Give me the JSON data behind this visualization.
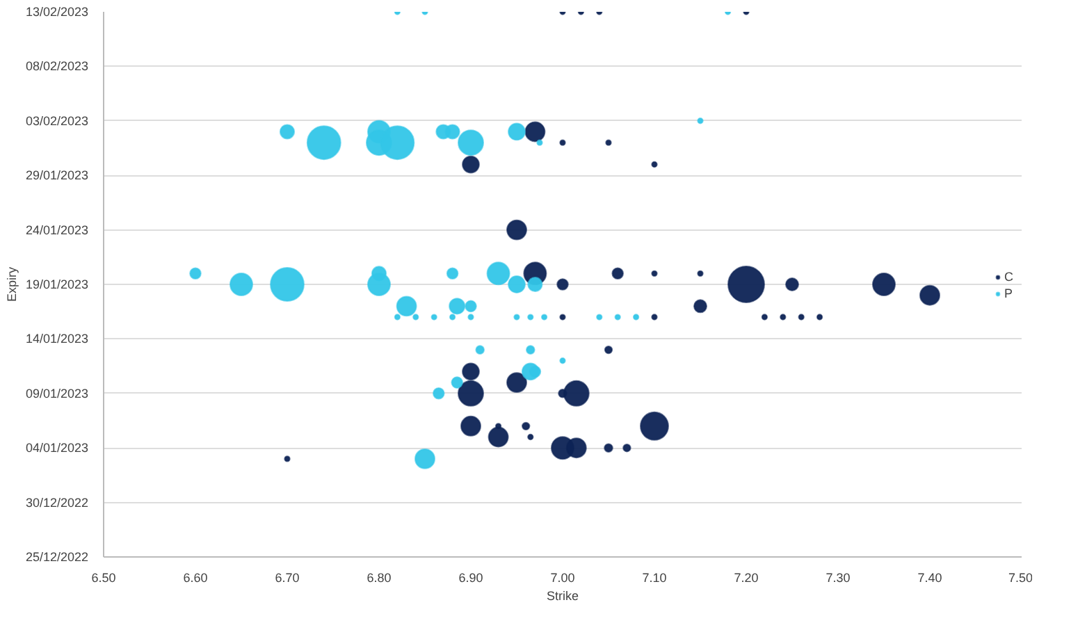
{
  "chart_data": {
    "type": "bubble",
    "orientation": "horizontal",
    "xlabel": "Strike",
    "ylabel": "Expiry",
    "xlim": [
      6.5,
      7.5
    ],
    "xticks": [
      {
        "value": 6.5,
        "label": "6.50"
      },
      {
        "value": 6.6,
        "label": "6.60"
      },
      {
        "value": 6.7,
        "label": "6.70"
      },
      {
        "value": 6.8,
        "label": "6.80"
      },
      {
        "value": 6.9,
        "label": "6.90"
      },
      {
        "value": 7.0,
        "label": "7.00"
      },
      {
        "value": 7.1,
        "label": "7.10"
      },
      {
        "value": 7.2,
        "label": "7.20"
      },
      {
        "value": 7.3,
        "label": "7.30"
      },
      {
        "value": 7.4,
        "label": "7.40"
      },
      {
        "value": 7.5,
        "label": "7.50"
      }
    ],
    "ylim": [
      "2022-12-25",
      "2023-02-13"
    ],
    "yticks": [
      {
        "value": "2022-12-25",
        "label": "25/12/2022"
      },
      {
        "value": "2022-12-30",
        "label": "30/12/2022"
      },
      {
        "value": "2023-01-04",
        "label": "04/01/2023"
      },
      {
        "value": "2023-01-09",
        "label": "09/01/2023"
      },
      {
        "value": "2023-01-14",
        "label": "14/01/2023"
      },
      {
        "value": "2023-01-19",
        "label": "19/01/2023"
      },
      {
        "value": "2023-01-24",
        "label": "24/01/2023"
      },
      {
        "value": "2023-01-29",
        "label": "29/01/2023"
      },
      {
        "value": "2023-02-03",
        "label": "03/02/2023"
      },
      {
        "value": "2023-02-08",
        "label": "08/02/2023"
      },
      {
        "value": "2023-02-13",
        "label": "13/02/2023"
      }
    ],
    "grid": "y",
    "legend": "right",
    "series": [
      {
        "name": "C",
        "color": "#0d2355",
        "values": [
          7.0,
          7.02,
          7.04,
          7.2,
          6.97,
          7.0,
          7.05,
          6.9,
          7.1,
          6.95,
          6.97,
          7.06,
          7.1,
          7.15,
          7.0,
          7.2,
          7.25,
          7.35,
          7.4,
          7.15,
          7.0,
          7.1,
          7.22,
          7.24,
          7.26,
          7.28,
          7.05,
          6.9,
          6.95,
          6.9,
          7.0,
          7.015,
          6.9,
          6.93,
          6.96,
          7.1,
          6.93,
          6.965,
          7.0,
          7.015,
          7.05,
          7.07,
          6.7
        ],
        "x": [
          "2023-02-13",
          "2023-02-13",
          "2023-02-13",
          "2023-02-13",
          "2023-02-02",
          "2023-02-01",
          "2023-02-01",
          "2023-01-30",
          "2023-01-30",
          "2023-01-24",
          "2023-01-20",
          "2023-01-20",
          "2023-01-20",
          "2023-01-20",
          "2023-01-19",
          "2023-01-19",
          "2023-01-19",
          "2023-01-19",
          "2023-01-18",
          "2023-01-17",
          "2023-01-16",
          "2023-01-16",
          "2023-01-16",
          "2023-01-16",
          "2023-01-16",
          "2023-01-16",
          "2023-01-13",
          "2023-01-11",
          "2023-01-10",
          "2023-01-09",
          "2023-01-09",
          "2023-01-09",
          "2023-01-06",
          "2023-01-06",
          "2023-01-06",
          "2023-01-06",
          "2023-01-05",
          "2023-01-05",
          "2023-01-04",
          "2023-01-04",
          "2023-01-04",
          "2023-01-04",
          "2023-01-03"
        ],
        "sizes": [
          0.02,
          0.02,
          0.02,
          0.02,
          0.29,
          0.02,
          0.02,
          0.21,
          0.02,
          0.29,
          0.38,
          0.09,
          0.02,
          0.02,
          0.09,
          1,
          0.12,
          0.38,
          0.29,
          0.12,
          0.02,
          0.02,
          0.02,
          0.02,
          0.02,
          0.02,
          0.04,
          0.21,
          0.29,
          0.48,
          0.05,
          0.48,
          0.29,
          0.02,
          0.04,
          0.59,
          0.29,
          0.02,
          0.38,
          0.29,
          0.05,
          0.04,
          0.02
        ]
      },
      {
        "name": "P",
        "color": "#33c6e8",
        "values": [
          6.82,
          6.85,
          7.18,
          7.15,
          6.7,
          6.8,
          6.87,
          6.88,
          6.95,
          6.74,
          6.8,
          6.82,
          6.9,
          6.975,
          6.6,
          6.8,
          6.88,
          6.93,
          6.65,
          6.7,
          6.8,
          6.95,
          6.97,
          6.83,
          6.885,
          6.9,
          6.82,
          6.84,
          6.86,
          6.88,
          6.9,
          6.95,
          6.965,
          6.98,
          7.04,
          7.06,
          7.08,
          6.91,
          6.965,
          7.0,
          6.965,
          6.97,
          6.885,
          6.865,
          6.85
        ],
        "x": [
          "2023-02-13",
          "2023-02-13",
          "2023-02-13",
          "2023-02-03",
          "2023-02-02",
          "2023-02-02",
          "2023-02-02",
          "2023-02-02",
          "2023-02-02",
          "2023-02-01",
          "2023-02-01",
          "2023-02-01",
          "2023-02-01",
          "2023-02-01",
          "2023-01-20",
          "2023-01-20",
          "2023-01-20",
          "2023-01-20",
          "2023-01-19",
          "2023-01-19",
          "2023-01-19",
          "2023-01-19",
          "2023-01-19",
          "2023-01-17",
          "2023-01-17",
          "2023-01-17",
          "2023-01-16",
          "2023-01-16",
          "2023-01-16",
          "2023-01-16",
          "2023-01-16",
          "2023-01-16",
          "2023-01-16",
          "2023-01-16",
          "2023-01-16",
          "2023-01-16",
          "2023-01-16",
          "2023-01-13",
          "2023-01-13",
          "2023-01-12",
          "2023-01-11",
          "2023-01-11",
          "2023-01-10",
          "2023-01-09",
          "2023-01-03"
        ],
        "sizes": [
          0.02,
          0.02,
          0.02,
          0.02,
          0.15,
          0.38,
          0.15,
          0.15,
          0.21,
          0.85,
          0.48,
          0.85,
          0.48,
          0.02,
          0.09,
          0.15,
          0.09,
          0.38,
          0.38,
          0.85,
          0.38,
          0.21,
          0.15,
          0.29,
          0.18,
          0.09,
          0.02,
          0.02,
          0.02,
          0.02,
          0.02,
          0.02,
          0.02,
          0.02,
          0.02,
          0.02,
          0.02,
          0.05,
          0.05,
          0.02,
          0.21,
          0.09,
          0.09,
          0.09,
          0.29
        ]
      }
    ]
  }
}
